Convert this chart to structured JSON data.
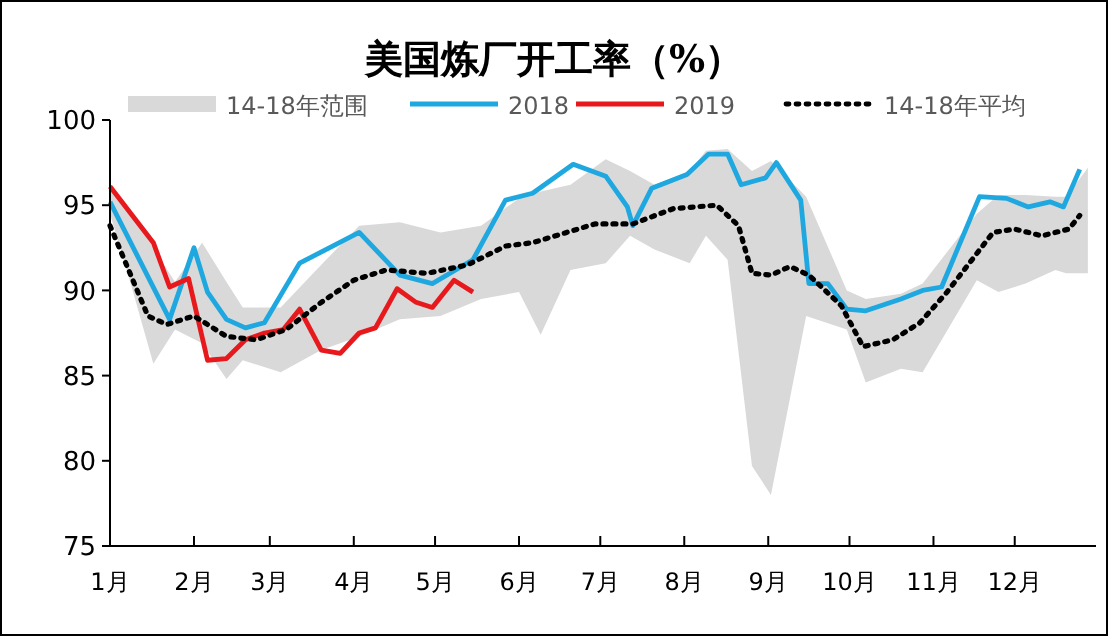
{
  "chart_data": {
    "type": "line",
    "title": "美国炼厂开工率（%）",
    "xlim": [
      "--01-01",
      "--12-31"
    ],
    "ylim": [
      75,
      100
    ],
    "yticks": [
      75,
      80,
      85,
      90,
      95,
      100
    ],
    "xticks": [
      {
        "value": "--01-01",
        "label": "1月"
      },
      {
        "value": "--02-01",
        "label": "2月"
      },
      {
        "value": "--03-01",
        "label": "3月"
      },
      {
        "value": "--04-01",
        "label": "4月"
      },
      {
        "value": "--05-01",
        "label": "5月"
      },
      {
        "value": "--06-01",
        "label": "6月"
      },
      {
        "value": "--07-01",
        "label": "7月"
      },
      {
        "value": "--08-01",
        "label": "8月"
      },
      {
        "value": "--09-01",
        "label": "9月"
      },
      {
        "value": "--10-01",
        "label": "10月"
      },
      {
        "value": "--11-01",
        "label": "11月"
      },
      {
        "value": "--12-01",
        "label": "12月"
      }
    ],
    "grid": false,
    "legend": "top",
    "marker": "none",
    "series": [
      {
        "name": "14-18年范围",
        "color": "#d9d9d9",
        "x": [
          "--01-01",
          "--01-09",
          "--01-17",
          "--01-25",
          "--02-04",
          "--02-13",
          "--02-19",
          "--03-05",
          "--03-20",
          "--04-03",
          "--04-18",
          "--05-03",
          "--05-18",
          "--06-01",
          "--06-09",
          "--06-20",
          "--07-03",
          "--07-12",
          "--07-21",
          "--08-03",
          "--08-09",
          "--08-17",
          "--08-26",
          "--09-02",
          "--09-15",
          "--09-30",
          "--10-07",
          "--10-20",
          "--10-28",
          "--11-17",
          "--11-25",
          "--12-05",
          "--12-16",
          "--12-20",
          "--12-28"
        ],
        "lower": [
          94.5,
          90.2,
          85.7,
          87.7,
          86.9,
          84.8,
          85.9,
          85.2,
          86.5,
          87.3,
          88.3,
          88.5,
          89.5,
          89.9,
          87.4,
          91.2,
          91.6,
          93.2,
          92.4,
          91.6,
          93.2,
          91.8,
          79.7,
          78,
          88.5,
          87.7,
          84.6,
          85.4,
          85.2,
          90.6,
          89.9,
          90.4,
          91.2,
          91,
          91
        ],
        "upper": [
          96.3,
          94.5,
          92.5,
          90.5,
          92.8,
          90.5,
          89,
          89,
          91.5,
          93.8,
          94,
          93.4,
          93.8,
          95.4,
          95.8,
          96.2,
          97.7,
          97,
          96.2,
          97,
          98.2,
          98.3,
          97,
          97.6,
          95.5,
          90,
          89.5,
          89.8,
          90.4,
          94.5,
          95.6,
          95.6,
          95.5,
          95.5,
          97.2
        ],
        "values": [
          null,
          null,
          null,
          null,
          null,
          null,
          null,
          null,
          null,
          null,
          null,
          null,
          null,
          null,
          null,
          null,
          null,
          null,
          null,
          null,
          null,
          null,
          null,
          null,
          null,
          null,
          null,
          null,
          null,
          null,
          null,
          null,
          null,
          null,
          null
        ]
      },
      {
        "name": "2018",
        "color": "#1fa8e0",
        "line_style": "solid",
        "x": [
          "--01-01",
          "--01-23",
          "--02-01",
          "--02-06",
          "--02-13",
          "--02-20",
          "--02-27",
          "--03-12",
          "--04-03",
          "--04-18",
          "--04-30",
          "--05-15",
          "--05-27",
          "--06-06",
          "--06-21",
          "--07-03",
          "--07-11",
          "--07-13",
          "--07-20",
          "--08-02",
          "--08-10",
          "--08-17",
          "--08-22",
          "--08-31",
          "--09-04",
          "--09-13",
          "--09-16",
          "--09-23",
          "--09-30",
          "--10-07",
          "--10-20",
          "--10-28",
          "--11-04",
          "--11-18",
          "--11-28",
          "--12-06",
          "--12-14",
          "--12-19",
          "--12-25"
        ],
        "values": [
          95.2,
          88.3,
          92.5,
          89.9,
          88.3,
          87.8,
          88.1,
          91.6,
          93.4,
          90.9,
          90.4,
          91.8,
          95.3,
          95.7,
          97.4,
          96.7,
          94.9,
          93.8,
          96,
          96.8,
          98,
          98,
          96.2,
          96.6,
          97.5,
          95.3,
          90.4,
          90.4,
          88.9,
          88.8,
          89.5,
          90,
          90.2,
          95.5,
          95.4,
          94.9,
          95.2,
          94.9,
          97.1
        ]
      },
      {
        "name": "2019",
        "color": "#e8191c",
        "line_style": "solid",
        "x": [
          "--01-01",
          "--01-17",
          "--01-23",
          "--01-30",
          "--02-06",
          "--02-13",
          "--02-20",
          "--02-27",
          "--03-06",
          "--03-12",
          "--03-20",
          "--03-27",
          "--04-03",
          "--04-09",
          "--04-17",
          "--04-24",
          "--04-30",
          "--05-08",
          "--05-15"
        ],
        "values": [
          96.1,
          92.8,
          90.2,
          90.7,
          85.9,
          86,
          87.1,
          87.5,
          87.7,
          88.9,
          86.5,
          86.3,
          87.5,
          87.8,
          90.1,
          89.3,
          89,
          90.6,
          89.9
        ]
      },
      {
        "name": "14-18年平均",
        "color": "#000000",
        "line_style": "dotted",
        "x": [
          "--01-01",
          "--01-15",
          "--01-22",
          "--02-01",
          "--02-13",
          "--02-24",
          "--03-07",
          "--03-20",
          "--04-01",
          "--04-13",
          "--04-28",
          "--05-13",
          "--05-27",
          "--06-06",
          "--06-29",
          "--07-13",
          "--07-28",
          "--08-13",
          "--08-21",
          "--08-26",
          "--09-02",
          "--09-09",
          "--09-16",
          "--09-28",
          "--10-06",
          "--10-17",
          "--10-27",
          "--11-06",
          "--11-23",
          "--12-01",
          "--12-11",
          "--12-21",
          "--12-25"
        ],
        "values": [
          93.8,
          88.5,
          88,
          88.5,
          87.3,
          87.1,
          87.7,
          89.3,
          90.6,
          91.2,
          91,
          91.5,
          92.6,
          92.8,
          93.9,
          93.9,
          94.8,
          95,
          93.8,
          91,
          90.9,
          91.4,
          90.9,
          89.1,
          86.7,
          87.1,
          88.1,
          89.9,
          93.4,
          93.6,
          93.2,
          93.6,
          94.4
        ]
      }
    ]
  }
}
